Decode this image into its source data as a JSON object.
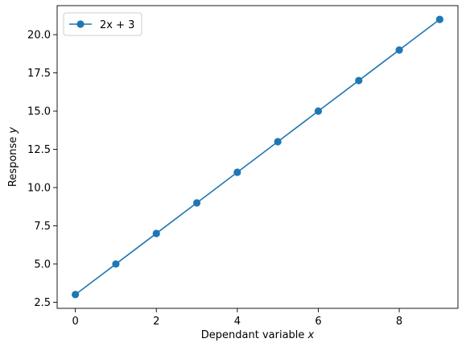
{
  "chart_data": {
    "type": "line",
    "title": "",
    "xlabel": "Dependant variable x",
    "ylabel": "Response y",
    "xlim": [
      -0.45,
      9.45
    ],
    "ylim": [
      2.1,
      21.9
    ],
    "x_ticks": [
      0,
      2,
      4,
      6,
      8
    ],
    "x_tick_labels": [
      "0",
      "2",
      "4",
      "6",
      "8"
    ],
    "y_ticks": [
      2.5,
      5.0,
      7.5,
      10.0,
      12.5,
      15.0,
      17.5,
      20.0
    ],
    "y_tick_labels": [
      "2.5",
      "5.0",
      "7.5",
      "10.0",
      "12.5",
      "15.0",
      "17.5",
      "20.0"
    ],
    "grid": false,
    "legend_position": "upper-left",
    "series": [
      {
        "name": "2x + 3",
        "color": "#1f77b4",
        "marker": "circle",
        "x": [
          0,
          1,
          2,
          3,
          4,
          5,
          6,
          7,
          8,
          9
        ],
        "y": [
          3,
          5,
          7,
          9,
          11,
          13,
          15,
          17,
          19,
          21
        ]
      }
    ]
  }
}
